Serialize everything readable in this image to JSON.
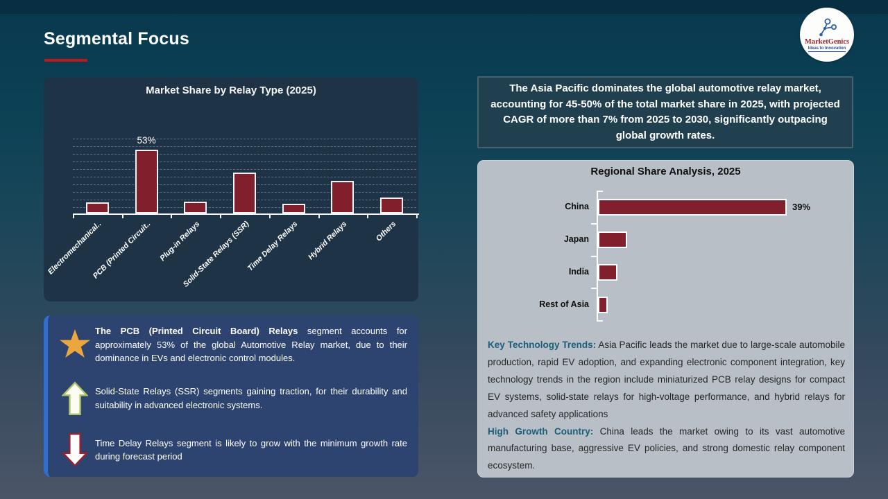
{
  "slide": {
    "title": "Segmental Focus"
  },
  "logo": {
    "brand": "MarketGenics",
    "tagline": "Ideas to Innovation"
  },
  "headline": {
    "text": "The Asia Pacific dominates the global automotive relay market, accounting for 45-50% of the total market share in 2025, with projected CAGR of more than 7% from 2025 to 2030, significantly outpacing global growth rates."
  },
  "insights": {
    "items": [
      {
        "icon": "star-icon",
        "lead": "The PCB (Printed Circuit Board) Relays",
        "text": " segment accounts for approximately 53% of the global Automotive Relay market, due to their dominance in EVs and electronic control modules."
      },
      {
        "icon": "arrow-up-icon",
        "lead": "",
        "text": "Solid-State Relays (SSR) segments gaining traction, for their durability and suitability in advanced electronic systems."
      },
      {
        "icon": "arrow-down-icon",
        "lead": "",
        "text": "Time Delay Relays segment is likely to grow with the minimum growth rate during forecast period"
      }
    ]
  },
  "trends": {
    "paragraphs": [
      {
        "lead": "Key Technology Trends:",
        "text": " Asia Pacific leads the market due to large-scale automobile production, rapid EV adoption, and expanding electronic component integration, key technology trends in the region include miniaturized PCB relay designs for compact EV systems, solid-state relays for high-voltage performance, and hybrid relays for advanced safety applications"
      },
      {
        "lead": "High Growth Country:",
        "text": " China leads the market owing to its vast automotive manufacturing base, aggressive EV policies, and strong domestic relay component ecosystem."
      }
    ]
  },
  "chart_data": [
    {
      "id": "relay_type",
      "type": "bar",
      "title": "Market Share by Relay Type (2025)",
      "categories": [
        "Electromechanical..",
        "PCB (Printed Circuit..",
        "Plug-in Relays",
        "Solid-State Relays (SSR)",
        "Time Delay Relays",
        "Hybrid Relays",
        "Others"
      ],
      "values": [
        9,
        53,
        10,
        34,
        8,
        27,
        13
      ],
      "value_labels": [
        "",
        "53%",
        "",
        "",
        "",
        "",
        ""
      ],
      "unit": "%",
      "ylim": [
        0,
        60
      ],
      "grid": "dashed-horizontal",
      "bar_color": "#821f2c"
    },
    {
      "id": "regional_share",
      "type": "bar-horizontal",
      "title": "Regional Share Analysis, 2025",
      "categories": [
        "China",
        "Japan",
        "India",
        "Rest of Asia"
      ],
      "values": [
        39,
        6,
        4,
        2
      ],
      "value_labels": [
        "39%",
        "",
        "",
        ""
      ],
      "unit": "%",
      "xlim": [
        0,
        45
      ],
      "grid": "off",
      "bar_color": "#821f2c"
    }
  ]
}
